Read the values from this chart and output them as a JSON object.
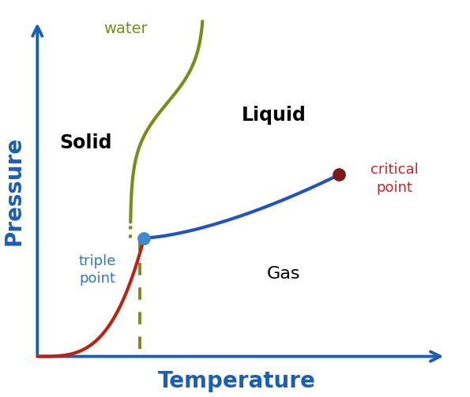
{
  "xlabel": "Temperature",
  "ylabel": "Pressure",
  "xlabel_color": "#1a5fb4",
  "ylabel_color": "#1a5fb4",
  "axis_color": "#1a5fb4",
  "solid_label": "Solid",
  "liquid_label": "Liquid",
  "gas_label": "Gas",
  "water_label": "water",
  "triple_label": "triple\npoint",
  "critical_label": "critical\npoint",
  "triple_color": "#4488cc",
  "critical_color": "#7a1a1a",
  "water_label_color": "#7a8c1a",
  "triple_label_color": "#3377bb",
  "critical_label_color": "#cc2222",
  "solid_liq_gas_label_color": "#000000",
  "background_color": "#ffffff",
  "triple_point": [
    0.3,
    0.4
  ],
  "critical_point": [
    0.72,
    0.56
  ]
}
